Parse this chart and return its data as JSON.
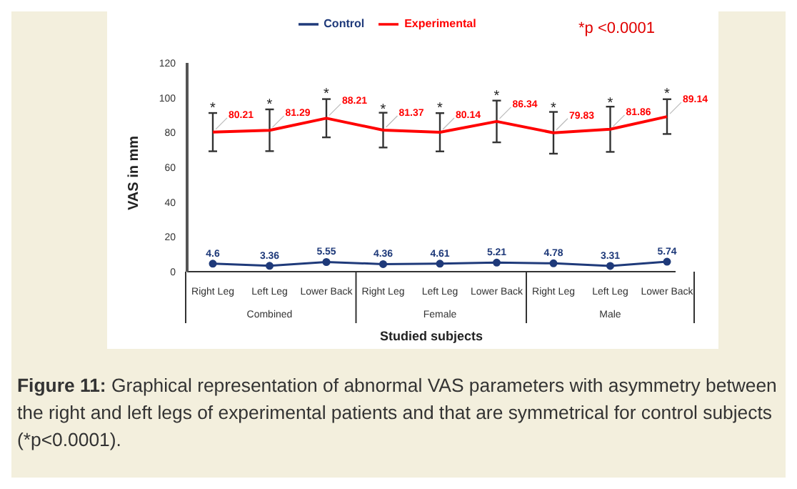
{
  "chart_data": {
    "type": "line",
    "xlabel": "Studied subjects",
    "ylabel": "VAS in mm",
    "categories": [
      "Right Leg",
      "Left Leg",
      "Lower Back",
      "Right Leg",
      "Left Leg",
      "Lower Back",
      "Right Leg",
      "Left Leg",
      "Lower Back"
    ],
    "series": [
      {
        "name": "Control",
        "color": "#1f3a7a",
        "marker": "circle",
        "values": [
          4.6,
          3.36,
          5.55,
          4.36,
          4.61,
          5.21,
          4.78,
          3.31,
          5.74
        ]
      },
      {
        "name": "Experimental",
        "color": "#ff0000",
        "marker": "none",
        "values": [
          80.21,
          81.29,
          88.21,
          81.37,
          80.14,
          86.34,
          79.83,
          81.86,
          89.14
        ],
        "errors": [
          11,
          12,
          11,
          10,
          11,
          12,
          12,
          13,
          10
        ]
      }
    ],
    "ylim": [
      0,
      120
    ],
    "yticks": [
      0,
      20,
      40,
      60,
      80,
      100,
      120
    ],
    "grid": false,
    "legend": "top",
    "data_labels": true,
    "annotations": [
      "*p <0.0001",
      "Combined",
      "Female",
      "Male",
      "Figure 11: Graphical representation of abnormal VAS parameters with asymmetry between the right and left legs of experimental patients and that are symmetrical for control subjects (*p<0.0001).",
      {
        "text": "*",
        "y": 95
      },
      {
        "text": "*",
        "y": 97
      },
      {
        "text": "*",
        "y": 103
      },
      {
        "text": "*",
        "y": 94
      },
      {
        "text": "*",
        "y": 95
      },
      {
        "text": "*",
        "y": 102
      },
      {
        "text": "*",
        "y": 95
      },
      {
        "text": "*",
        "y": 98
      },
      {
        "text": "*",
        "y": 103
      }
    ]
  }
}
